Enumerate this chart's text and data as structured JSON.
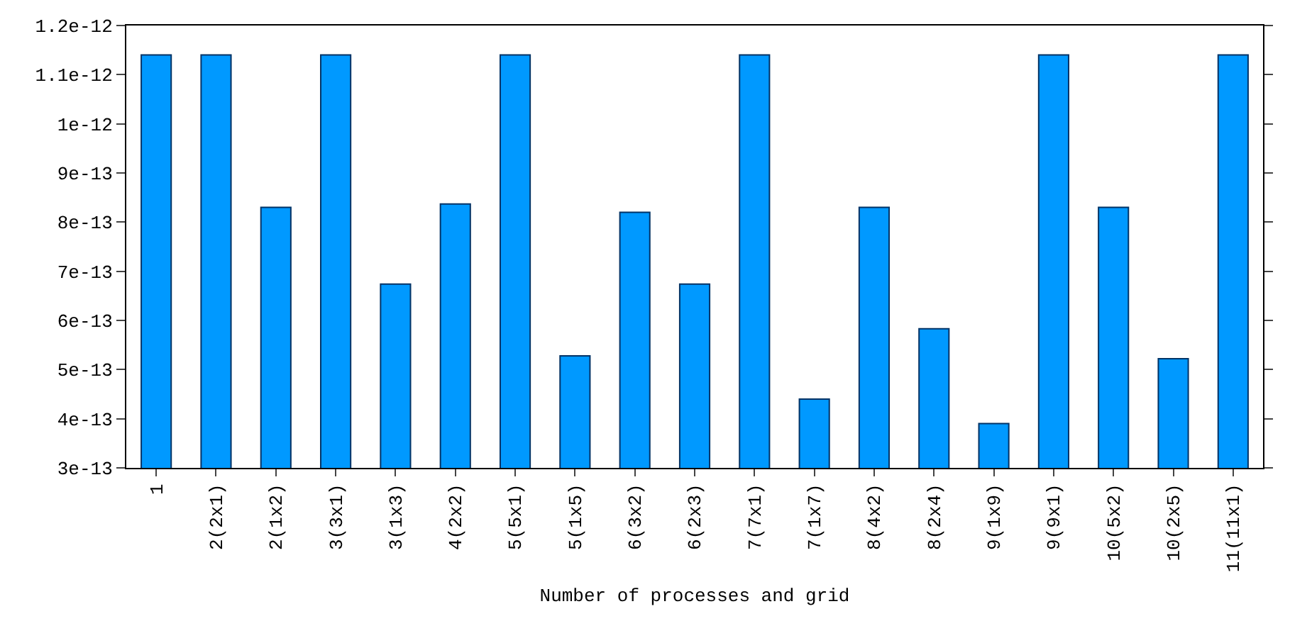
{
  "chart_data": {
    "type": "bar",
    "xlabel": "Number of processes and grid",
    "categories": [
      "1",
      "2(2x1)",
      "2(1x2)",
      "3(3x1)",
      "3(1x3)",
      "4(2x2)",
      "5(5x1)",
      "5(1x5)",
      "6(3x2)",
      "6(2x3)",
      "7(7x1)",
      "7(1x7)",
      "8(4x2)",
      "8(2x4)",
      "9(1x9)",
      "9(9x1)",
      "10(5x2)",
      "10(2x5)",
      "11(11x1)"
    ],
    "values": [
      1.14e-12,
      1.14e-12,
      8.3e-13,
      1.14e-12,
      6.74e-13,
      8.37e-13,
      1.14e-12,
      5.28e-13,
      8.2e-13,
      6.74e-13,
      1.14e-12,
      4.4e-13,
      8.3e-13,
      5.83e-13,
      3.9e-13,
      1.14e-12,
      8.3e-13,
      5.22e-13,
      1.14e-12
    ],
    "color": "#0099ff",
    "ylim": [
      3e-13,
      1.2e-12
    ],
    "yticks": [
      {
        "value": 3e-13,
        "label": "3e-13"
      },
      {
        "value": 4e-13,
        "label": "4e-13"
      },
      {
        "value": 5e-13,
        "label": "5e-13"
      },
      {
        "value": 6e-13,
        "label": "6e-13"
      },
      {
        "value": 7e-13,
        "label": "7e-13"
      },
      {
        "value": 8e-13,
        "label": "8e-13"
      },
      {
        "value": 9e-13,
        "label": "9e-13"
      },
      {
        "value": 1e-12,
        "label": "1e-12"
      },
      {
        "value": 1.1e-12,
        "label": "1.1e-12"
      },
      {
        "value": 1.2e-12,
        "label": "1.2e-12"
      }
    ],
    "grid": false
  }
}
